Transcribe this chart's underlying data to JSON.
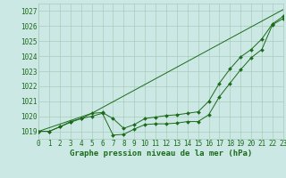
{
  "bg_color": "#cce8e4",
  "grid_color": "#aaccbb",
  "line_color": "#1a6b1a",
  "text_color": "#1a6b1a",
  "xlabel": "Graphe pression niveau de la mer (hPa)",
  "xlim": [
    0,
    23
  ],
  "ylim": [
    1018.5,
    1027.5
  ],
  "yticks": [
    1019,
    1020,
    1021,
    1022,
    1023,
    1024,
    1025,
    1026,
    1027
  ],
  "xticks": [
    0,
    1,
    2,
    3,
    4,
    5,
    6,
    7,
    8,
    9,
    10,
    11,
    12,
    13,
    14,
    15,
    16,
    17,
    18,
    19,
    20,
    21,
    22,
    23
  ],
  "series1_x": [
    0,
    1,
    2,
    3,
    4,
    5,
    6,
    7,
    8,
    9,
    10,
    11,
    12,
    13,
    14,
    15,
    16,
    17,
    18,
    19,
    20,
    21,
    22,
    23
  ],
  "series1_y": [
    1019.0,
    1019.0,
    1019.3,
    1019.6,
    1019.85,
    1020.0,
    1020.2,
    1018.75,
    1018.8,
    1019.15,
    1019.45,
    1019.5,
    1019.5,
    1019.55,
    1019.65,
    1019.65,
    1020.1,
    1021.3,
    1022.2,
    1023.1,
    1023.9,
    1024.45,
    1026.1,
    1026.5
  ],
  "series2_x": [
    0,
    1,
    2,
    3,
    4,
    5,
    6,
    7,
    8,
    9,
    10,
    11,
    12,
    13,
    14,
    15,
    16,
    17,
    18,
    19,
    20,
    21,
    22,
    23
  ],
  "series2_y": [
    1019.0,
    1019.0,
    1019.3,
    1019.65,
    1019.85,
    1020.2,
    1020.25,
    1019.85,
    1019.2,
    1019.45,
    1019.85,
    1019.95,
    1020.05,
    1020.1,
    1020.2,
    1020.3,
    1021.0,
    1022.2,
    1023.15,
    1023.95,
    1024.45,
    1025.15,
    1026.15,
    1026.65
  ],
  "series3_x": [
    0,
    5,
    23
  ],
  "series3_y": [
    1019.0,
    1020.2,
    1027.1
  ],
  "marker": "D",
  "markersize": 2.0,
  "linewidth": 0.7,
  "tick_fontsize": 5.5,
  "xlabel_fontsize": 6.5
}
